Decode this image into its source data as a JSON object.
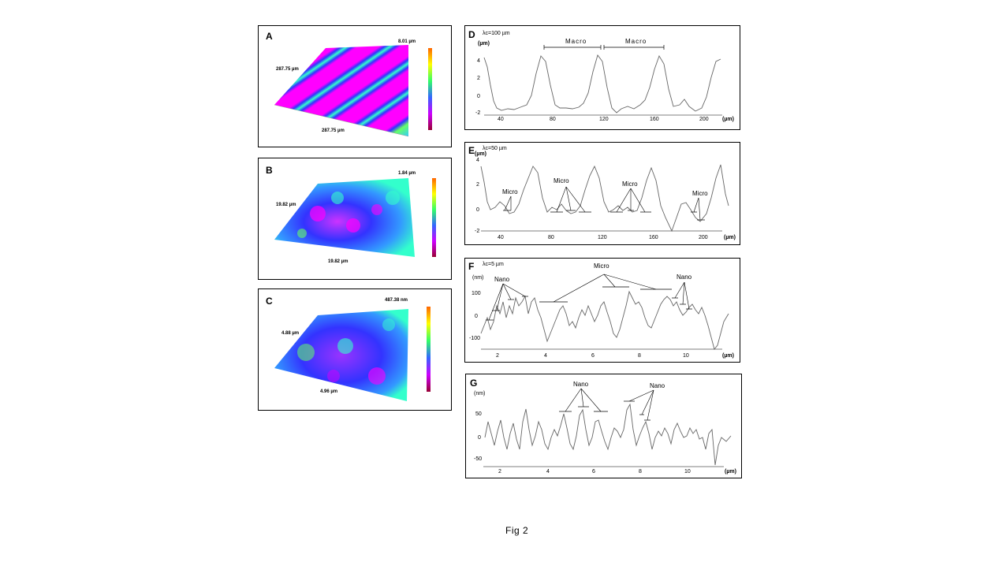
{
  "figure": {
    "caption": "Fig 2"
  },
  "panels": {
    "A": {
      "letter": "A",
      "z_label": "8.01 µm",
      "y_label": "287.75 µm",
      "x_label": "287.75 µm"
    },
    "B": {
      "letter": "B",
      "z_label": "1.84 µm",
      "y_label": "19.82 µm",
      "x_label": "19.82 µm"
    },
    "C": {
      "letter": "C",
      "z_label": "487.38 nm",
      "y_label": "4.88 µm",
      "x_label": "4.96 µm"
    },
    "D": {
      "letter": "D",
      "cutoff": "λc=100 µm",
      "yunit": "(µm)",
      "xunit": "(µm)",
      "yticks": [
        "4",
        "2",
        "0",
        "-2"
      ],
      "xticks": [
        "40",
        "80",
        "120",
        "160",
        "200"
      ],
      "annotations": [
        "Macro",
        "Macro"
      ]
    },
    "E": {
      "letter": "E",
      "cutoff": "λc=50 µm",
      "yunit": "(µm)",
      "xunit": "(µm)",
      "yticks": [
        "4",
        "2",
        "0",
        "-2"
      ],
      "xticks": [
        "40",
        "80",
        "120",
        "160",
        "200"
      ],
      "annotations": [
        "Micro",
        "Micro",
        "Micro",
        "Micro"
      ]
    },
    "F": {
      "letter": "F",
      "cutoff": "λc=5 µm",
      "yunit": "(nm)",
      "xunit": "(µm)",
      "yticks": [
        "100",
        "0",
        "-100"
      ],
      "xticks": [
        "2",
        "4",
        "6",
        "8",
        "10"
      ],
      "annotations": [
        "Nano",
        "Micro",
        "Nano"
      ]
    },
    "G": {
      "letter": "G",
      "yunit": "(nm)",
      "xunit": "(µm)",
      "yticks": [
        "50",
        "0",
        "-50"
      ],
      "xticks": [
        "2",
        "4",
        "6",
        "8",
        "10"
      ],
      "annotations": [
        "Nano",
        "Nano"
      ]
    }
  }
}
